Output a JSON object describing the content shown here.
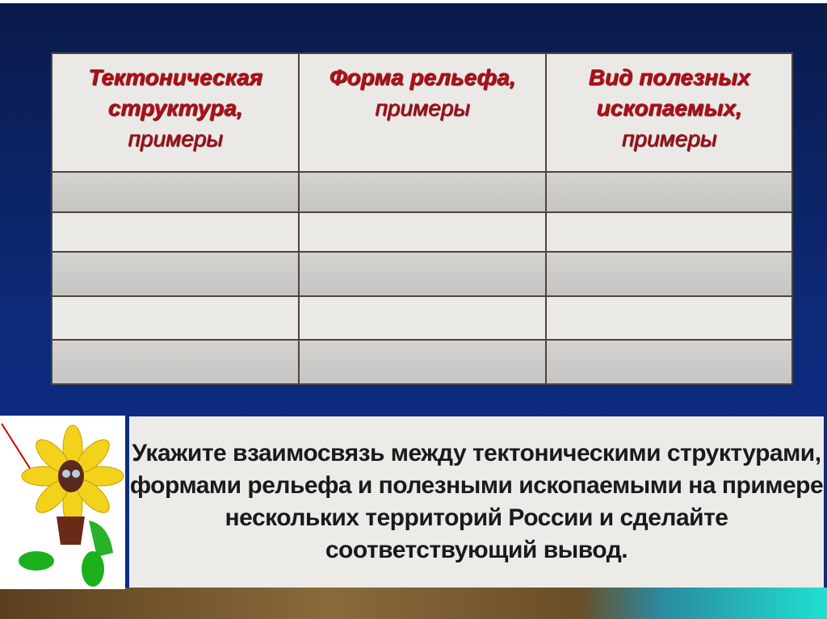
{
  "table": {
    "headers": [
      {
        "bold": "Тектоническая структура,",
        "normal": "примеры"
      },
      {
        "bold": "Форма рельефа,",
        "normal": "примеры"
      },
      {
        "bold": "Вид полезных ископаемых,",
        "normal": "примеры"
      }
    ],
    "rows": [
      [
        "",
        "",
        ""
      ],
      [
        "",
        "",
        ""
      ],
      [
        "",
        "",
        ""
      ],
      [
        "",
        "",
        ""
      ],
      [
        "",
        "",
        ""
      ]
    ]
  },
  "task": {
    "text": "Укажите взаимосвязь между тектоническими структурами, формами рельефа и полезными ископаемыми на примере нескольких территорий России и сделайте соответствующий вывод."
  },
  "mascot": {
    "icon": "sunflower-character-icon"
  },
  "colors": {
    "header_text": "#b0101a",
    "background": "#0d2a78"
  }
}
